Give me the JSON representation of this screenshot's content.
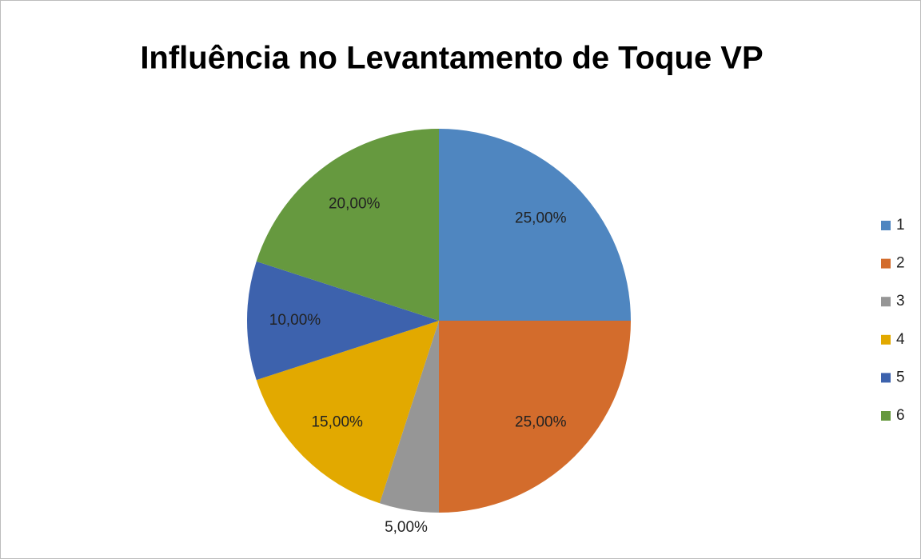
{
  "chart_data": {
    "type": "pie",
    "title": "Influência no Levantamento de Toque VP",
    "categories": [
      "1",
      "2",
      "3",
      "4",
      "5",
      "6"
    ],
    "values": [
      25,
      25,
      5,
      15,
      10,
      20
    ],
    "value_labels": [
      "25,00%",
      "25,00%",
      "5,00%",
      "15,00%",
      "10,00%",
      "20,00%"
    ],
    "colors": [
      "#4f86c0",
      "#d36c2c",
      "#969696",
      "#e2a900",
      "#3d62ad",
      "#66993f"
    ],
    "legend": "right"
  }
}
